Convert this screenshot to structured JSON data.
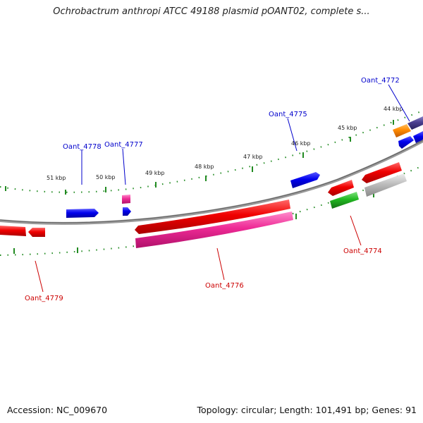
{
  "title": "Ochrobactrum anthropi ATCC 49188 plasmid pOANT02, complete s...",
  "footer": {
    "accession": "Accession: NC_009670",
    "summary": "Topology: circular; Length: 101,491 bp; Genes: 91"
  },
  "ticks": [
    "44 kbp",
    "45 kbp",
    "46 kbp",
    "47 kbp",
    "48 kbp",
    "49 kbp",
    "50 kbp",
    "51 kbp"
  ],
  "gene_labels": [
    {
      "name": "Oant_4772",
      "color": "#0000cc"
    },
    {
      "name": "Oant_4775",
      "color": "#0000cc"
    },
    {
      "name": "Oant_4777",
      "color": "#0000cc"
    },
    {
      "name": "Oant_4778",
      "color": "#0000cc"
    },
    {
      "name": "Oant_4774",
      "color": "#cc0000"
    },
    {
      "name": "Oant_4776",
      "color": "#cc0000"
    },
    {
      "name": "Oant_4779",
      "color": "#cc0000"
    }
  ],
  "colors": {
    "forward_cds": "#0a0ae6",
    "reverse_cds": "#e60a0a",
    "rrna": "#ee2288",
    "misc": "#22bb22",
    "pseudo": "#bbbbbb",
    "orange_feature": "#ff8800",
    "purple_feature": "#4a3f8f",
    "backbone": "#808080",
    "tick_marks": "#228b22"
  }
}
